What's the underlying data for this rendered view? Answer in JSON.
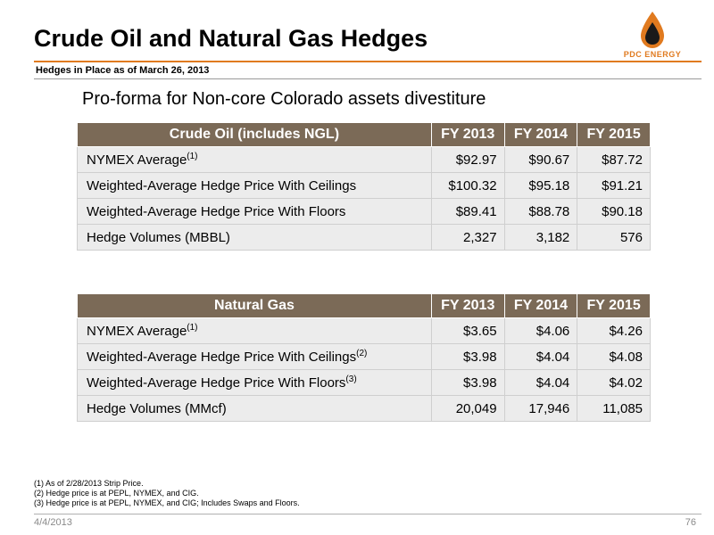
{
  "title": "Crude Oil and Natural Gas Hedges",
  "subtitle": "Hedges in Place as of March 26, 2013",
  "logo_text": "PDC ENERGY",
  "heading": "Pro-forma for Non-core Colorado assets divestiture",
  "oil": {
    "headers": [
      "Crude Oil (includes NGL)",
      "FY 2013",
      "FY 2014",
      "FY 2015"
    ],
    "rows": [
      {
        "label": "NYMEX Average",
        "sup": "(1)",
        "values": [
          "$92.97",
          "$90.67",
          "$87.72"
        ]
      },
      {
        "label": "Weighted-Average Hedge Price With Ceilings",
        "sup": "",
        "values": [
          "$100.32",
          "$95.18",
          "$91.21"
        ]
      },
      {
        "label": "Weighted-Average Hedge Price With Floors",
        "sup": "",
        "values": [
          "$89.41",
          "$88.78",
          "$90.18"
        ]
      },
      {
        "label": "Hedge Volumes (MBBL)",
        "sup": "",
        "values": [
          "2,327",
          "3,182",
          "576"
        ]
      }
    ]
  },
  "gas": {
    "headers": [
      "Natural Gas",
      "FY 2013",
      "FY 2014",
      "FY 2015"
    ],
    "rows": [
      {
        "label": "NYMEX Average",
        "sup": "(1)",
        "values": [
          "$3.65",
          "$4.06",
          "$4.26"
        ]
      },
      {
        "label": "Weighted-Average Hedge Price With Ceilings",
        "sup": "(2)",
        "values": [
          "$3.98",
          "$4.04",
          "$4.08"
        ]
      },
      {
        "label": "Weighted-Average Hedge Price With Floors",
        "sup": "(3)",
        "values": [
          "$3.98",
          "$4.04",
          "$4.02"
        ]
      },
      {
        "label": "Hedge Volumes (MMcf)",
        "sup": "",
        "values": [
          "20,049",
          "17,946",
          "11,085"
        ]
      }
    ]
  },
  "footnotes": [
    "(1) As of 2/28/2013 Strip Price.",
    "(2) Hedge price is at PEPL, NYMEX, and CIG.",
    "(3) Hedge price is at PEPL, NYMEX, and CIG; Includes Swaps and Floors."
  ],
  "footer": {
    "date": "4/4/2013",
    "page": "76"
  },
  "colors": {
    "accent": "#e07a1f",
    "header_bg": "#7b6a57",
    "row_bg": "#ececec"
  }
}
